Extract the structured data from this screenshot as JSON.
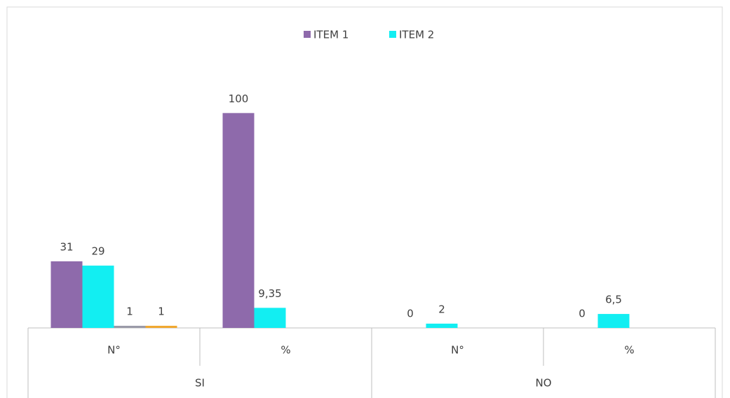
{
  "chart_data": {
    "type": "bar",
    "categories": [
      "N°",
      "%",
      "N°",
      "%"
    ],
    "category_groups": [
      "SI",
      "NO"
    ],
    "series": [
      {
        "name": "ITEM 1",
        "color": "#8e6aab",
        "values": [
          31,
          100,
          0,
          0
        ]
      },
      {
        "name": "ITEM 2",
        "color": "#12eef2",
        "values": [
          29,
          9.35,
          2,
          6.5
        ],
        "value_labels": [
          "29",
          "9,35",
          "2",
          "6,5"
        ]
      },
      {
        "color": "#9a9aa8",
        "values": [
          1,
          null,
          null,
          null
        ]
      },
      {
        "color": "#f0a830",
        "values": [
          1,
          null,
          null,
          null
        ]
      }
    ],
    "ylim": [
      0,
      120
    ],
    "legend": "top"
  }
}
